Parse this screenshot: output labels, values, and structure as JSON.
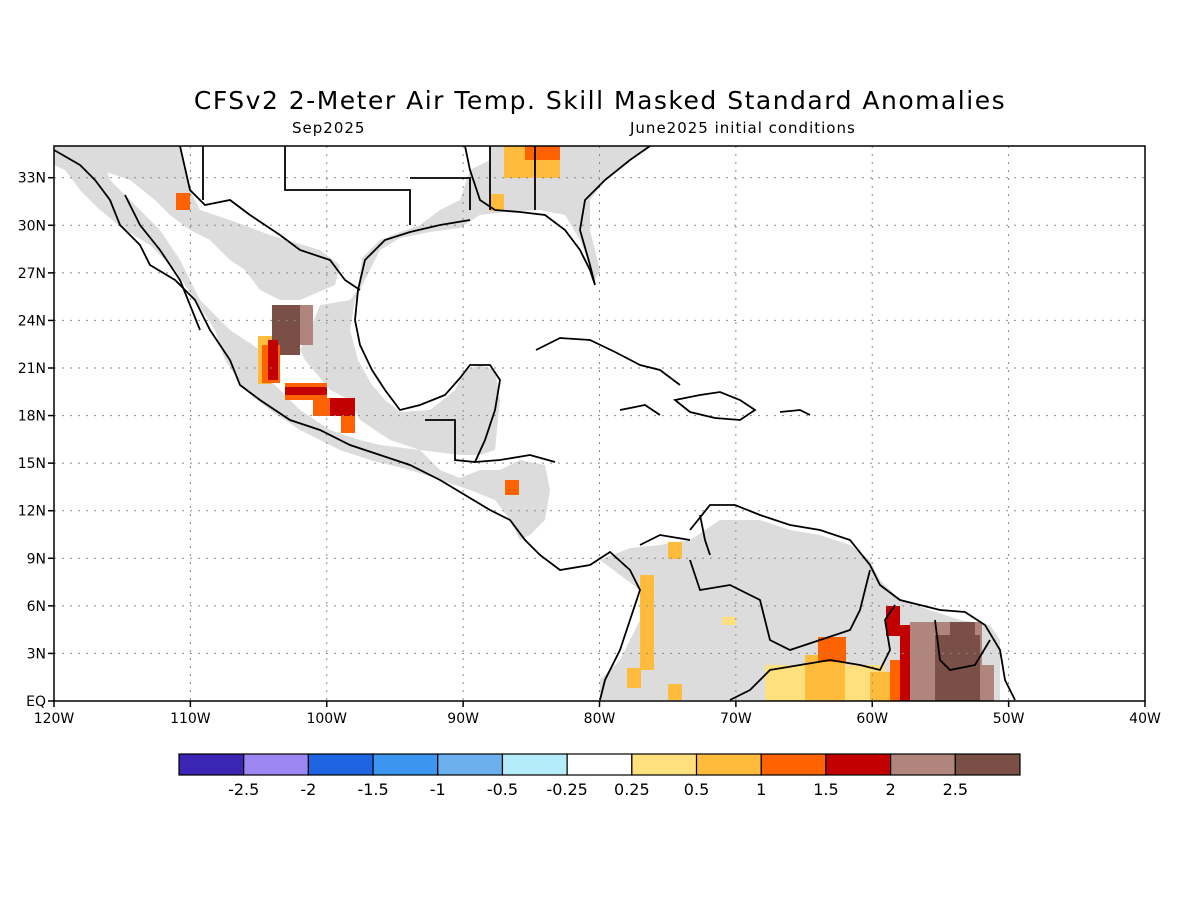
{
  "title": "CFSv2 2-Meter Air Temp. Skill Masked Standard Anomalies",
  "subtitle_left": "Sep2025",
  "subtitle_right": "June2025 initial conditions",
  "map": {
    "projection": "lat-lon",
    "lon_range": [
      -120,
      -40
    ],
    "lat_range": [
      0,
      35
    ],
    "x_ticks": [
      {
        "lon": -120,
        "label": "120W"
      },
      {
        "lon": -110,
        "label": "110W"
      },
      {
        "lon": -100,
        "label": "100W"
      },
      {
        "lon": -90,
        "label": "90W"
      },
      {
        "lon": -80,
        "label": "80W"
      },
      {
        "lon": -70,
        "label": "70W"
      },
      {
        "lon": -60,
        "label": "60W"
      },
      {
        "lon": -50,
        "label": "50W"
      },
      {
        "lon": -40,
        "label": "40W"
      }
    ],
    "y_ticks": [
      {
        "lat": 0,
        "label": "EQ"
      },
      {
        "lat": 3,
        "label": "3N"
      },
      {
        "lat": 6,
        "label": "6N"
      },
      {
        "lat": 9,
        "label": "9N"
      },
      {
        "lat": 12,
        "label": "12N"
      },
      {
        "lat": 15,
        "label": "15N"
      },
      {
        "lat": 18,
        "label": "18N"
      },
      {
        "lat": 21,
        "label": "21N"
      },
      {
        "lat": 24,
        "label": "24N"
      },
      {
        "lat": 27,
        "label": "27N"
      },
      {
        "lat": 30,
        "label": "30N"
      },
      {
        "lat": 33,
        "label": "33N"
      }
    ],
    "grid": true,
    "masked_color": "#dcdcdc"
  },
  "colorbar": {
    "colors": [
      "#3a25b4",
      "#9c86f2",
      "#1f64e0",
      "#3c96f0",
      "#6cb0f0",
      "#b4ecfa",
      "#ffffff",
      "#ffe07e",
      "#ffbc3c",
      "#ff6200",
      "#c30000",
      "#b0867c",
      "#7a5046"
    ],
    "labels": [
      "-2.5",
      "-2",
      "-1.5",
      "-1",
      "-0.5",
      "-0.25",
      "0.25",
      "0.5",
      "1",
      "1.5",
      "2",
      "2.5"
    ]
  },
  "colors": {
    "masked_gray": "#dcdcdc",
    "anom_0_25_0_5": "#ffe07e",
    "anom_0_5_1": "#ffbc3c",
    "anom_1_1_5": "#ff6200",
    "anom_1_5_2": "#c30000",
    "anom_2_2_5": "#b0867c",
    "anom_gt_2_5": "#7a5046"
  }
}
